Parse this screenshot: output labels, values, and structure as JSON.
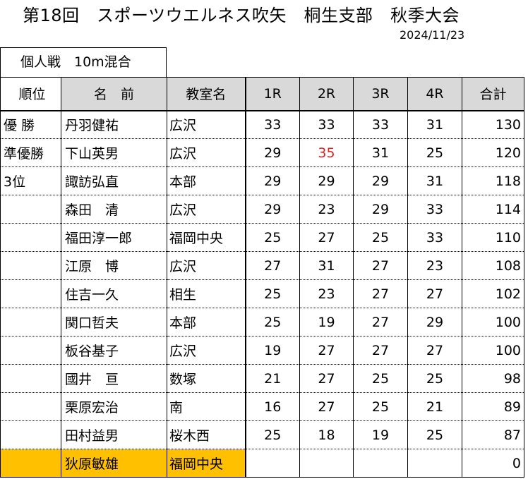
{
  "header": {
    "title": "第18回　スポーツウエルネス吹矢　桐生支部　秋季大会",
    "date": "2024/11/23",
    "event": "個人戦　10m混合"
  },
  "columns": {
    "rank": "順位",
    "name": "名　前",
    "class": "教室名",
    "r1": "1R",
    "r2": "2R",
    "r3": "3R",
    "r4": "4R",
    "total": "合計"
  },
  "rows": [
    {
      "rank": "優 勝",
      "name": "丹羽健祐",
      "class": "広沢",
      "r1": "33",
      "r2": "33",
      "r3": "33",
      "r4": "31",
      "total": "130"
    },
    {
      "rank": "準優勝",
      "name": "下山英男",
      "class": "広沢",
      "r1": "29",
      "r2": "35",
      "r3": "31",
      "r4": "25",
      "total": "120"
    },
    {
      "rank": "3位",
      "name": "諏訪弘直",
      "class": "本部",
      "r1": "29",
      "r2": "29",
      "r3": "29",
      "r4": "31",
      "total": "118"
    },
    {
      "rank": "",
      "name": "森田　清",
      "class": "広沢",
      "r1": "29",
      "r2": "23",
      "r3": "29",
      "r4": "33",
      "total": "114"
    },
    {
      "rank": "",
      "name": "福田淳一郎",
      "class": "福岡中央",
      "r1": "25",
      "r2": "27",
      "r3": "25",
      "r4": "33",
      "total": "110"
    },
    {
      "rank": "",
      "name": "江原　博",
      "class": "広沢",
      "r1": "27",
      "r2": "31",
      "r3": "27",
      "r4": "23",
      "total": "108"
    },
    {
      "rank": "",
      "name": "住吉一久",
      "class": "相生",
      "r1": "25",
      "r2": "23",
      "r3": "27",
      "r4": "27",
      "total": "102"
    },
    {
      "rank": "",
      "name": "関口哲夫",
      "class": "本部",
      "r1": "25",
      "r2": "19",
      "r3": "27",
      "r4": "29",
      "total": "100"
    },
    {
      "rank": "",
      "name": "板谷基子",
      "class": "広沢",
      "r1": "19",
      "r2": "27",
      "r3": "27",
      "r4": "27",
      "total": "100"
    },
    {
      "rank": "",
      "name": "國井　亘",
      "class": "数塚",
      "r1": "21",
      "r2": "27",
      "r3": "25",
      "r4": "25",
      "total": "98"
    },
    {
      "rank": "",
      "name": "栗原宏治",
      "class": "南",
      "r1": "16",
      "r2": "27",
      "r3": "25",
      "r4": "21",
      "total": "89"
    },
    {
      "rank": "",
      "name": "田村益男",
      "class": "桜木西",
      "r1": "25",
      "r2": "18",
      "r3": "19",
      "r4": "25",
      "total": "87"
    },
    {
      "rank": "",
      "name": "狄原敏雄",
      "class": "福岡中央",
      "r1": "",
      "r2": "",
      "r3": "",
      "r4": "",
      "total": "0"
    }
  ],
  "colors": {
    "highlight": "#ffc000",
    "header_bg": "#d9d9d9",
    "emphasis_score": "#dd2222"
  }
}
